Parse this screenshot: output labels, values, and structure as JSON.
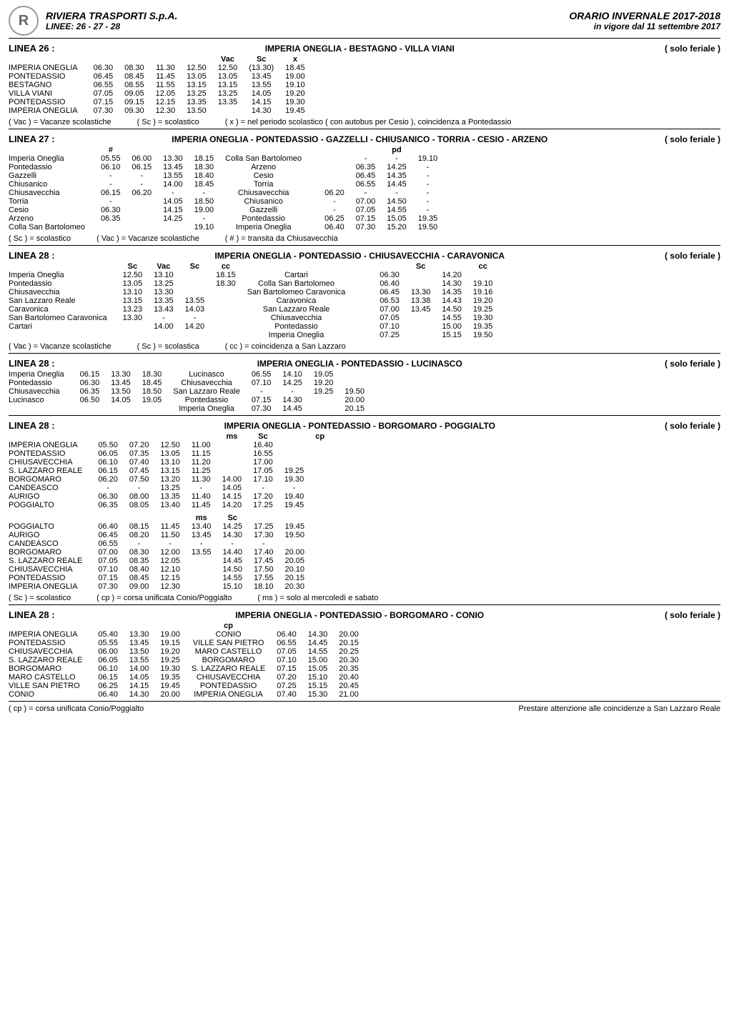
{
  "header": {
    "company": "RIVIERA TRASPORTI S.p.A.",
    "linee": "LINEE: 26 - 27 - 28",
    "season": "ORARIO INVERNALE 2017-2018",
    "validity": "in vigore dal 11 settembre 2017",
    "logo_text": "R"
  },
  "notes": {
    "vac": "( Vac ) = Vacanze scolastiche",
    "sc_o": "( Sc ) = scolastico",
    "sc_a": "( Sc ) = scolastica",
    "x": "( x ) = nel periodo scolastico ( con autobus per Cesio ), coincidenza a Pontedassio",
    "hash": "( # ) = transita da Chiusavecchia",
    "cc": "( cc ) = coincidenza a San Lazzaro",
    "cp": "( cp ) = corsa unificata Conio/Poggialto",
    "ms": "( ms ) = solo al mercoledì e sabato",
    "cp_footer": "( cp ) = corsa unificata Conio/Poggialto",
    "prestare": "Prestare attenzione alle coincidenze a San Lazzaro Reale"
  },
  "linea26": {
    "label": "LINEA 26 :",
    "route": "IMPERIA ONEGLIA - BESTAGNO - VILLA VIANI",
    "solo": "( solo feriale )",
    "headers": [
      "",
      "",
      "",
      "",
      "Vac",
      "Sc",
      "x",
      ""
    ],
    "rows": [
      {
        "stop": "IMPERIA ONEGLIA",
        "t": [
          "06.30",
          "08.30",
          "11.30",
          "12.50",
          "12.50",
          "(13.30)",
          "18.45"
        ]
      },
      {
        "stop": "PONTEDASSIO",
        "t": [
          "06.45",
          "08.45",
          "11.45",
          "13.05",
          "13.05",
          "13.45",
          "19.00"
        ]
      },
      {
        "stop": "BESTAGNO",
        "t": [
          "06.55",
          "08.55",
          "11.55",
          "13.15",
          "13.15",
          "13.55",
          "19.10"
        ]
      },
      {
        "stop": "VILLA VIANI",
        "t": [
          "07.05",
          "09.05",
          "12.05",
          "13.25",
          "13.25",
          "14.05",
          "19.20"
        ]
      },
      {
        "stop": "PONTEDASSIO",
        "t": [
          "07.15",
          "09.15",
          "12.15",
          "13.35",
          "13.35",
          "14.15",
          "19.30"
        ]
      },
      {
        "stop": "IMPERIA ONEGLIA",
        "t": [
          "07.30",
          "09.30",
          "12.30",
          "13.50",
          "",
          "14.30",
          "19.45"
        ]
      }
    ]
  },
  "linea27": {
    "label": "LINEA 27 :",
    "route": "IMPERIA ONEGLIA - PONTEDASSIO - GAZZELLI - CHIUSANICO - TORRIA - CESIO - ARZENO",
    "solo": "( solo feriale )",
    "headers": [
      "#",
      "",
      "",
      "",
      "",
      "",
      "",
      "",
      "pd"
    ],
    "rows": [
      {
        "stop": "Imperia Oneglia",
        "t": [
          "05.55",
          "06.00",
          "13.30",
          "18.15",
          "Colla San Bartolomeo",
          "",
          "",
          "-",
          "-",
          "19.10"
        ]
      },
      {
        "stop": "Pontedassio",
        "t": [
          "06.10",
          "06.15",
          "13.45",
          "18.30",
          "Arzeno",
          "",
          "",
          "06.35",
          "14.25",
          "-"
        ]
      },
      {
        "stop": "Gazzelli",
        "t": [
          "-",
          "-",
          "13.55",
          "18.40",
          "Cesio",
          "",
          "",
          "06.45",
          "14.35",
          "-"
        ]
      },
      {
        "stop": "Chiusanico",
        "t": [
          "-",
          "-",
          "14.00",
          "18.45",
          "Torria",
          "",
          "",
          "06.55",
          "14.45",
          "-"
        ]
      },
      {
        "stop": "Chiusavecchia",
        "t": [
          "06.15",
          "06.20",
          "-",
          "-",
          "Chiusavecchia",
          "",
          "06.20",
          "-",
          "-",
          "-"
        ]
      },
      {
        "stop": "Torria",
        "t": [
          "-",
          "",
          "14.05",
          "18.50",
          "Chiusanico",
          "",
          "-",
          "07.00",
          "14.50",
          "-"
        ]
      },
      {
        "stop": "Cesio",
        "t": [
          "06.30",
          "",
          "14.15",
          "19.00",
          "Gazzelli",
          "",
          "-",
          "07.05",
          "14.55",
          "-"
        ]
      },
      {
        "stop": "Arzeno",
        "t": [
          "06.35",
          "",
          "14.25",
          "-",
          "Pontedassio",
          "",
          "06.25",
          "07.15",
          "15.05",
          "19.35"
        ]
      },
      {
        "stop": "Colla San Bartolomeo",
        "t": [
          "",
          "",
          "",
          "19.10",
          "Imperia Oneglia",
          "",
          "06.40",
          "07.30",
          "15.20",
          "19.50"
        ]
      }
    ]
  },
  "linea28a": {
    "label": "LINEA 28 :",
    "route": "IMPERIA ONEGLIA - PONTEDASSIO - CHIUSAVECCHIA - CARAVONICA",
    "solo": "( solo feriale )",
    "headers": [
      "Sc",
      "Vac",
      "Sc",
      "cc",
      "",
      "",
      "",
      "",
      "Sc",
      "",
      "cc"
    ],
    "rows": [
      {
        "stop": "Imperia Oneglia",
        "t": [
          "12.50",
          "13.10",
          "",
          "18.15",
          "Cartari",
          "",
          "",
          "06.30",
          "",
          "14.20",
          ""
        ]
      },
      {
        "stop": "Pontedassio",
        "t": [
          "13.05",
          "13.25",
          "",
          "18.30",
          "Colla San Bartolomeo",
          "",
          "",
          "06.40",
          "",
          "14.30",
          "19.10"
        ]
      },
      {
        "stop": "Chiusavecchia",
        "t": [
          "13.10",
          "13.30",
          "",
          "",
          "San Bartolomeo Caravonica",
          "",
          "",
          "06.45",
          "13.30",
          "14.35",
          "19.16"
        ]
      },
      {
        "stop": "San Lazzaro Reale",
        "t": [
          "13.15",
          "13.35",
          "13.55",
          "",
          "Caravonica",
          "",
          "",
          "06.53",
          "13.38",
          "14.43",
          "19.20"
        ]
      },
      {
        "stop": "Caravonica",
        "t": [
          "13.23",
          "13.43",
          "14.03",
          "",
          "San Lazzaro Reale",
          "",
          "",
          "07.00",
          "13.45",
          "14.50",
          "19.25"
        ]
      },
      {
        "stop": "San Bartolomeo Caravonica",
        "t": [
          "13.30",
          "-",
          "-",
          "",
          "Chiusavecchia",
          "",
          "",
          "07.05",
          "",
          "14.55",
          "19.30"
        ]
      },
      {
        "stop": "Cartari",
        "t": [
          "",
          "14.00",
          "14.20",
          "",
          "Pontedassio",
          "",
          "",
          "07.10",
          "",
          "15.00",
          "19.35"
        ]
      },
      {
        "stop": "",
        "t": [
          "",
          "",
          "",
          "",
          "Imperia Oneglia",
          "",
          "",
          "07.25",
          "",
          "15.15",
          "19.50"
        ]
      }
    ]
  },
  "linea28b": {
    "label": "LINEA 28 :",
    "route": "IMPERIA ONEGLIA - PONTEDASSIO - LUCINASCO",
    "solo": "( solo feriale )",
    "rows": [
      {
        "stop": "Imperia Oneglia",
        "t": [
          "06.15",
          "13.30",
          "18.30",
          "Lucinasco",
          "06.55",
          "14.10",
          "19.05",
          ""
        ]
      },
      {
        "stop": "Pontedassio",
        "t": [
          "06.30",
          "13.45",
          "18.45",
          "Chiusavecchia",
          "07.10",
          "14.25",
          "19.20",
          ""
        ]
      },
      {
        "stop": "Chiusavecchia",
        "t": [
          "06.35",
          "13.50",
          "18.50",
          "San Lazzaro Reale",
          "-",
          "-",
          "19.25",
          "19.50"
        ]
      },
      {
        "stop": "Lucinasco",
        "t": [
          "06.50",
          "14.05",
          "19.05",
          "Pontedassio",
          "07.15",
          "14.30",
          "",
          "20.00"
        ]
      },
      {
        "stop": "",
        "t": [
          "",
          "",
          "",
          "Imperia Oneglia",
          "07.30",
          "14.45",
          "",
          "20.15"
        ]
      }
    ]
  },
  "linea28c": {
    "label": "LINEA 28 :",
    "route": "IMPERIA ONEGLIA - PONTEDASSIO - BORGOMARO - POGGIALTO",
    "solo": "( solo feriale )",
    "headers": [
      "",
      "",
      "",
      "",
      "ms",
      "Sc",
      "",
      "cp"
    ],
    "block1": [
      {
        "stop": "IMPERIA ONEGLIA",
        "t": [
          "05.50",
          "07.20",
          "12.50",
          "11.00",
          "",
          "16.40",
          ""
        ]
      },
      {
        "stop": "PONTEDASSIO",
        "t": [
          "06.05",
          "07.35",
          "13.05",
          "11.15",
          "",
          "16.55",
          ""
        ]
      },
      {
        "stop": "CHIUSAVECCHIA",
        "t": [
          "06.10",
          "07.40",
          "13.10",
          "11.20",
          "",
          "17.00",
          ""
        ]
      },
      {
        "stop": "S. LAZZARO REALE",
        "t": [
          "06.15",
          "07.45",
          "13.15",
          "11.25",
          "",
          "17.05",
          "19.25"
        ]
      },
      {
        "stop": "BORGOMARO",
        "t": [
          "06.20",
          "07.50",
          "13.20",
          "11.30",
          "14.00",
          "17.10",
          "19.30"
        ]
      },
      {
        "stop": "CANDEASCO",
        "t": [
          "-",
          "-",
          "13.25",
          "-",
          "14.05",
          "-",
          "-"
        ]
      },
      {
        "stop": "AURIGO",
        "t": [
          "06.30",
          "08.00",
          "13.35",
          "11.40",
          "14.15",
          "17.20",
          "19.40"
        ]
      },
      {
        "stop": "POGGIALTO",
        "t": [
          "06.35",
          "08.05",
          "13.40",
          "11.45",
          "14.20",
          "17.25",
          "19.45"
        ]
      }
    ],
    "headers2": [
      "",
      "",
      "",
      "ms",
      "Sc",
      "",
      "",
      ""
    ],
    "block2": [
      {
        "stop": "POGGIALTO",
        "t": [
          "06.40",
          "08.15",
          "11.45",
          "13.40",
          "14.25",
          "17.25",
          "19.45"
        ]
      },
      {
        "stop": "AURIGO",
        "t": [
          "06.45",
          "08.20",
          "11.50",
          "13.45",
          "14.30",
          "17.30",
          "19.50"
        ]
      },
      {
        "stop": "CANDEASCO",
        "t": [
          "06.55",
          "-",
          "-",
          "-",
          "-",
          "-",
          ""
        ]
      },
      {
        "stop": "BORGOMARO",
        "t": [
          "07.00",
          "08.30",
          "12.00",
          "13.55",
          "14.40",
          "17.40",
          "20.00"
        ]
      },
      {
        "stop": "S. LAZZARO REALE",
        "t": [
          "07.05",
          "08.35",
          "12.05",
          "",
          "14.45",
          "17.45",
          "20.05"
        ]
      },
      {
        "stop": "CHIUSAVECCHIA",
        "t": [
          "07.10",
          "08.40",
          "12.10",
          "",
          "14.50",
          "17.50",
          "20.10"
        ]
      },
      {
        "stop": "PONTEDASSIO",
        "t": [
          "07.15",
          "08.45",
          "12.15",
          "",
          "14.55",
          "17.55",
          "20.15"
        ]
      },
      {
        "stop": "IMPERIA ONEGLIA",
        "t": [
          "07.30",
          "09.00",
          "12.30",
          "",
          "15.10",
          "18.10",
          "20.30"
        ]
      }
    ]
  },
  "linea28d": {
    "label": "LINEA 28 :",
    "route": "IMPERIA ONEGLIA - PONTEDASSIO - BORGOMARO - CONIO",
    "solo": "( solo feriale )",
    "headers": [
      "",
      "",
      "",
      "cp",
      "",
      "",
      "",
      "",
      ""
    ],
    "rows": [
      {
        "stop": "IMPERIA ONEGLIA",
        "t": [
          "05.40",
          "13.30",
          "19.00",
          "CONIO",
          "06.40",
          "14.30",
          "20.00"
        ]
      },
      {
        "stop": "PONTEDASSIO",
        "t": [
          "05.55",
          "13.45",
          "19.15",
          "VILLE SAN PIETRO",
          "06.55",
          "14.45",
          "20.15"
        ]
      },
      {
        "stop": "CHIUSAVECCHIA",
        "t": [
          "06.00",
          "13.50",
          "19.20",
          "MARO CASTELLO",
          "07.05",
          "14.55",
          "20.25"
        ]
      },
      {
        "stop": "S. LAZZARO REALE",
        "t": [
          "06.05",
          "13.55",
          "19.25",
          "BORGOMARO",
          "07.10",
          "15.00",
          "20.30"
        ]
      },
      {
        "stop": "BORGOMARO",
        "t": [
          "06.10",
          "14.00",
          "19.30",
          "S. LAZZARO REALE",
          "07.15",
          "15.05",
          "20.35"
        ]
      },
      {
        "stop": "MARO CASTELLO",
        "t": [
          "06.15",
          "14.05",
          "19.35",
          "CHIUSAVECCHIA",
          "07.20",
          "15.10",
          "20.40"
        ]
      },
      {
        "stop": "VILLE SAN PIETRO",
        "t": [
          "06.25",
          "14.15",
          "19.45",
          "PONTEDASSIO",
          "07.25",
          "15.15",
          "20.45"
        ]
      },
      {
        "stop": "CONIO",
        "t": [
          "06.40",
          "14.30",
          "20.00",
          "IMPERIA ONEGLIA",
          "07.40",
          "15.30",
          "21.00"
        ]
      }
    ]
  }
}
